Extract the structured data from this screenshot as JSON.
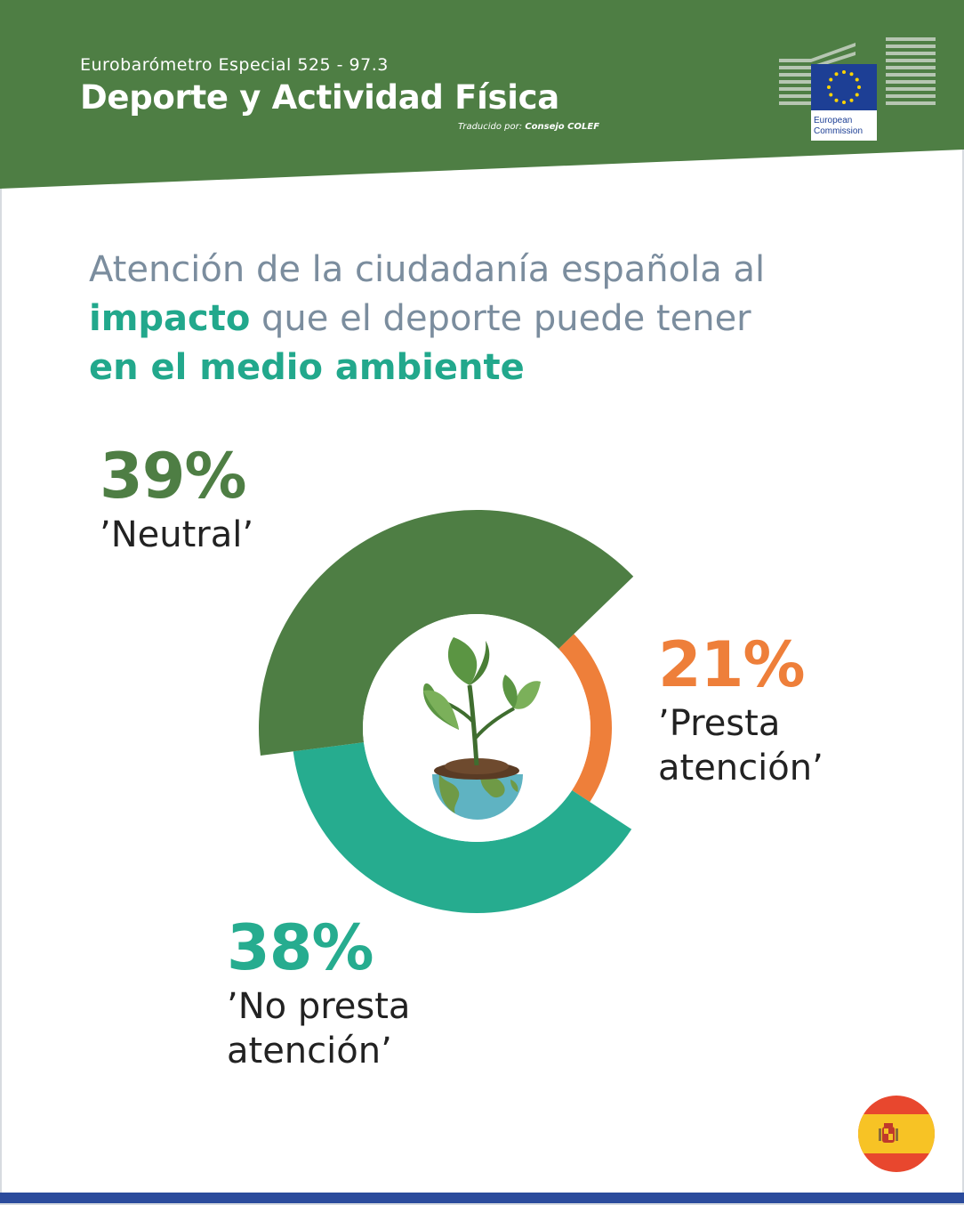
{
  "header": {
    "subtitle": "Eurobarómetro Especial 525 - 97.3",
    "title": "Deporte y Actividad Física",
    "credit_prefix": "Traducido por:",
    "credit_org": "Consejo COLEF",
    "logo_text_1": "European",
    "logo_text_2": "Commission"
  },
  "headline": {
    "part1": "Atención de la ciudadanía española al",
    "part2_bold": "impacto",
    "part2_rest": " que el deporte puede tener",
    "part3_bold": "en el medio ambiente"
  },
  "stats": {
    "neutral": {
      "pct": "39%",
      "label": "’Neutral’"
    },
    "presta": {
      "pct": "21%",
      "label1": "’Presta",
      "label2": "atención’"
    },
    "nopresta": {
      "pct": "38%",
      "label1": "’No presta",
      "label2": "atención’"
    }
  },
  "colors": {
    "header_green": "#4e7e44",
    "neutral": "#4e7e44",
    "presta": "#ee7f3a",
    "nopresta": "#26ac8f",
    "headline_gray": "#7b8d9e",
    "headline_teal": "#22a88c",
    "bottom_bar": "#2b4b9c"
  },
  "chart_data": {
    "type": "pie",
    "title": "",
    "categories": [
      "’Neutral’",
      "’Presta atención’",
      "’No presta atención’"
    ],
    "values": [
      39,
      21,
      38
    ]
  }
}
